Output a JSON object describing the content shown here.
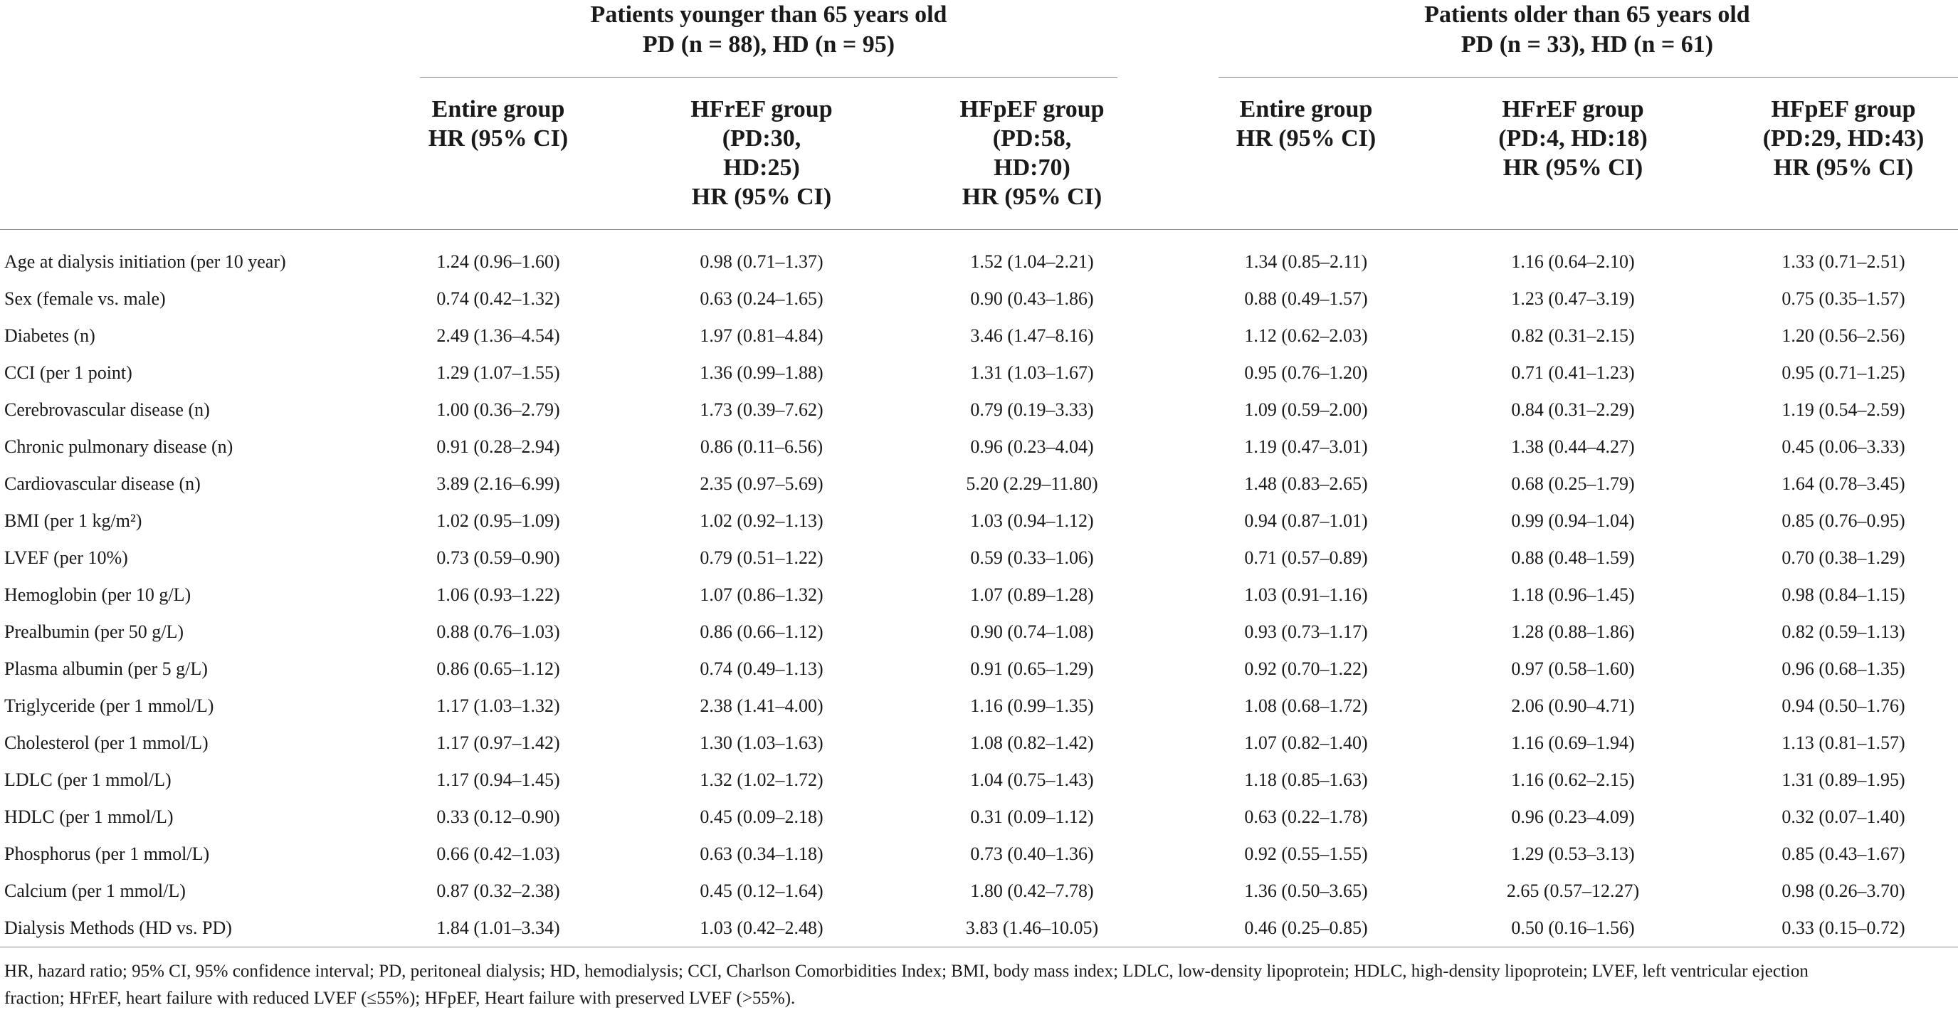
{
  "groups": {
    "young": {
      "line1": "Patients younger than 65 years old",
      "line2": "PD (n = 88), HD (n = 95)"
    },
    "old": {
      "line1": "Patients older than 65 years old",
      "line2": "PD (n = 33), HD (n = 61)"
    }
  },
  "columns": [
    {
      "lines": [
        "Entire group",
        "HR (95% CI)"
      ]
    },
    {
      "lines": [
        "HFrEF group",
        "(PD:30,",
        "HD:25)",
        "HR (95% CI)"
      ]
    },
    {
      "lines": [
        "HFpEF group",
        "(PD:58,",
        "HD:70)",
        "HR (95% CI)"
      ]
    },
    {
      "lines": [
        "Entire group",
        "HR (95% CI)"
      ]
    },
    {
      "lines": [
        "HFrEF group",
        "(PD:4, HD:18)",
        "HR (95% CI)"
      ]
    },
    {
      "lines": [
        "HFpEF group",
        "(PD:29, HD:43)",
        "HR (95% CI)"
      ]
    }
  ],
  "rows": [
    {
      "label": "Age at dialysis initiation (per 10 year)",
      "values": [
        "1.24 (0.96–1.60)",
        "0.98 (0.71–1.37)",
        "1.52 (1.04–2.21)",
        "1.34 (0.85–2.11)",
        "1.16 (0.64–2.10)",
        "1.33 (0.71–2.51)"
      ]
    },
    {
      "label": "Sex (female vs. male)",
      "values": [
        "0.74 (0.42–1.32)",
        "0.63 (0.24–1.65)",
        "0.90 (0.43–1.86)",
        "0.88 (0.49–1.57)",
        "1.23 (0.47–3.19)",
        "0.75 (0.35–1.57)"
      ]
    },
    {
      "label": "Diabetes (n)",
      "values": [
        "2.49 (1.36–4.54)",
        "1.97 (0.81–4.84)",
        "3.46 (1.47–8.16)",
        "1.12 (0.62–2.03)",
        "0.82 (0.31–2.15)",
        "1.20 (0.56–2.56)"
      ]
    },
    {
      "label": "CCI (per 1 point)",
      "values": [
        "1.29 (1.07–1.55)",
        "1.36 (0.99–1.88)",
        "1.31 (1.03–1.67)",
        "0.95 (0.76–1.20)",
        "0.71 (0.41–1.23)",
        "0.95 (0.71–1.25)"
      ]
    },
    {
      "label": "Cerebrovascular disease (n)",
      "values": [
        "1.00 (0.36–2.79)",
        "1.73 (0.39–7.62)",
        "0.79 (0.19–3.33)",
        "1.09 (0.59–2.00)",
        "0.84 (0.31–2.29)",
        "1.19 (0.54–2.59)"
      ]
    },
    {
      "label": "Chronic pulmonary disease (n)",
      "values": [
        "0.91 (0.28–2.94)",
        "0.86 (0.11–6.56)",
        "0.96 (0.23–4.04)",
        "1.19 (0.47–3.01)",
        "1.38 (0.44–4.27)",
        "0.45 (0.06–3.33)"
      ]
    },
    {
      "label": "Cardiovascular disease (n)",
      "values": [
        "3.89 (2.16–6.99)",
        "2.35 (0.97–5.69)",
        "5.20 (2.29–11.80)",
        "1.48 (0.83–2.65)",
        "0.68 (0.25–1.79)",
        "1.64 (0.78–3.45)"
      ]
    },
    {
      "label": "BMI (per 1 kg/m²)",
      "values": [
        "1.02 (0.95–1.09)",
        "1.02 (0.92–1.13)",
        "1.03 (0.94–1.12)",
        "0.94 (0.87–1.01)",
        "0.99 (0.94–1.04)",
        "0.85 (0.76–0.95)"
      ]
    },
    {
      "label": "LVEF (per 10%)",
      "values": [
        "0.73 (0.59–0.90)",
        "0.79 (0.51–1.22)",
        "0.59 (0.33–1.06)",
        "0.71 (0.57–0.89)",
        "0.88 (0.48–1.59)",
        "0.70 (0.38–1.29)"
      ]
    },
    {
      "label": "Hemoglobin (per 10 g/L)",
      "values": [
        "1.06 (0.93–1.22)",
        "1.07 (0.86–1.32)",
        "1.07 (0.89–1.28)",
        "1.03 (0.91–1.16)",
        "1.18 (0.96–1.45)",
        "0.98 (0.84–1.15)"
      ]
    },
    {
      "label": "Prealbumin (per 50 g/L)",
      "values": [
        "0.88 (0.76–1.03)",
        "0.86 (0.66–1.12)",
        "0.90 (0.74–1.08)",
        "0.93 (0.73–1.17)",
        "1.28 (0.88–1.86)",
        "0.82 (0.59–1.13)"
      ]
    },
    {
      "label": "Plasma albumin (per 5 g/L)",
      "values": [
        "0.86 (0.65–1.12)",
        "0.74 (0.49–1.13)",
        "0.91 (0.65–1.29)",
        "0.92 (0.70–1.22)",
        "0.97 (0.58–1.60)",
        "0.96 (0.68–1.35)"
      ]
    },
    {
      "label": "Triglyceride (per 1 mmol/L)",
      "values": [
        "1.17 (1.03–1.32)",
        "2.38 (1.41–4.00)",
        "1.16 (0.99–1.35)",
        "1.08 (0.68–1.72)",
        "2.06 (0.90–4.71)",
        "0.94 (0.50–1.76)"
      ]
    },
    {
      "label": "Cholesterol (per 1 mmol/L)",
      "values": [
        "1.17 (0.97–1.42)",
        "1.30 (1.03–1.63)",
        "1.08 (0.82–1.42)",
        "1.07 (0.82–1.40)",
        "1.16 (0.69–1.94)",
        "1.13 (0.81–1.57)"
      ]
    },
    {
      "label": "LDLC (per 1 mmol/L)",
      "values": [
        "1.17 (0.94–1.45)",
        "1.32 (1.02–1.72)",
        "1.04 (0.75–1.43)",
        "1.18 (0.85–1.63)",
        "1.16 (0.62–2.15)",
        "1.31 (0.89–1.95)"
      ]
    },
    {
      "label": "HDLC (per 1 mmol/L)",
      "values": [
        "0.33 (0.12–0.90)",
        "0.45 (0.09–2.18)",
        "0.31 (0.09–1.12)",
        "0.63 (0.22–1.78)",
        "0.96 (0.23–4.09)",
        "0.32 (0.07–1.40)"
      ]
    },
    {
      "label": "Phosphorus (per 1 mmol/L)",
      "values": [
        "0.66 (0.42–1.03)",
        "0.63 (0.34–1.18)",
        "0.73 (0.40–1.36)",
        "0.92 (0.55–1.55)",
        "1.29 (0.53–3.13)",
        "0.85 (0.43–1.67)"
      ]
    },
    {
      "label": "Calcium (per 1 mmol/L)",
      "values": [
        "0.87 (0.32–2.38)",
        "0.45 (0.12–1.64)",
        "1.80 (0.42–7.78)",
        "1.36 (0.50–3.65)",
        "2.65 (0.57–12.27)",
        "0.98 (0.26–3.70)"
      ]
    },
    {
      "label": "Dialysis Methods (HD vs. PD)",
      "values": [
        "1.84 (1.01–3.34)",
        "1.03 (0.42–2.48)",
        "3.83 (1.46–10.05)",
        "0.46 (0.25–0.85)",
        "0.50 (0.16–1.56)",
        "0.33 (0.15–0.72)"
      ]
    }
  ],
  "footnote": {
    "line1": "HR, hazard ratio; 95% CI, 95% confidence interval; PD, peritoneal dialysis; HD, hemodialysis; CCI, Charlson Comorbidities Index; BMI, body mass index; LDLC, low-density lipoprotein; HDLC, high-density lipoprotein; LVEF, left ventricular ejection",
    "line2": "fraction; HFrEF, heart failure with reduced LVEF (≤55%); HFpEF, Heart failure with preserved LVEF (>55%)."
  }
}
